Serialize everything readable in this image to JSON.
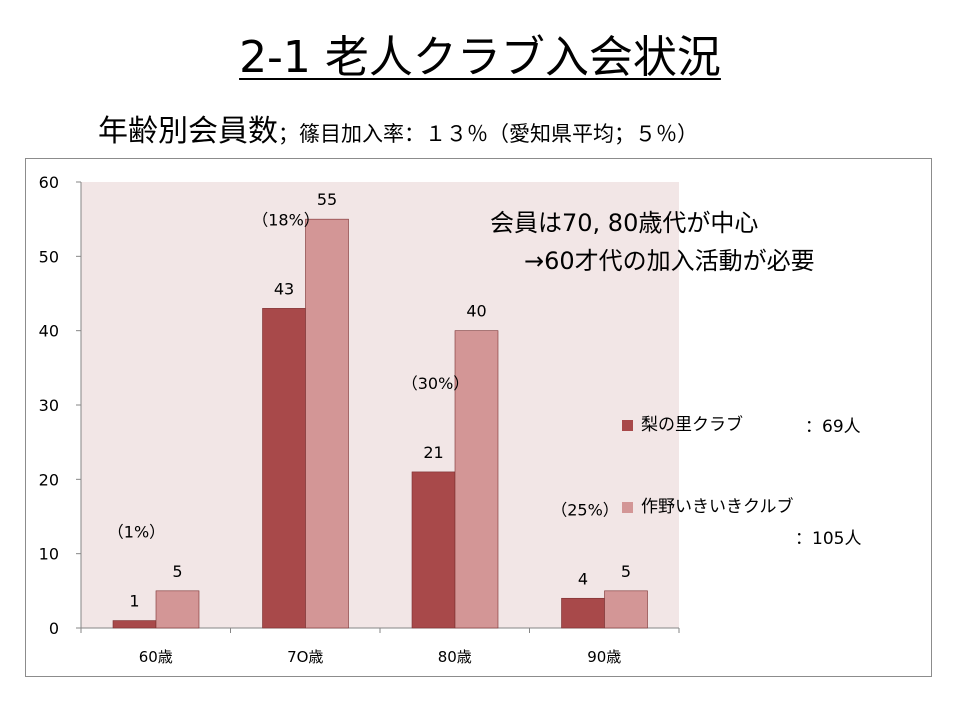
{
  "slide": {
    "title": "2-1 老人クラブ入会状況",
    "subtitle_main": "年齢別会員数",
    "subtitle_note": "；篠目加入率：１３％（愛知県平均；５％）"
  },
  "annotation": {
    "line1": "会員は70, 80歳代が中心",
    "line2": "→60才代の加入活動が必要"
  },
  "chart_data": {
    "type": "bar",
    "categories": [
      "60歳",
      "7O歳",
      "80歳",
      "90歳"
    ],
    "series": [
      {
        "name": "梨の里クラブ",
        "values": [
          1,
          43,
          21,
          4
        ],
        "color": "#a8494a",
        "total_label": "：69人"
      },
      {
        "name": "作野いきいきクルブ",
        "values": [
          5,
          55,
          40,
          5
        ],
        "color": "#d39696",
        "total_label": "：105人"
      }
    ],
    "rate_labels": [
      "（1%）",
      "（18%）",
      "（30%）",
      "（25%）"
    ],
    "ylim": [
      0,
      60
    ],
    "yticks": [
      0,
      10,
      20,
      30,
      40,
      50,
      60
    ],
    "plot_background": "#f2e6e6",
    "legend_position": "right"
  }
}
